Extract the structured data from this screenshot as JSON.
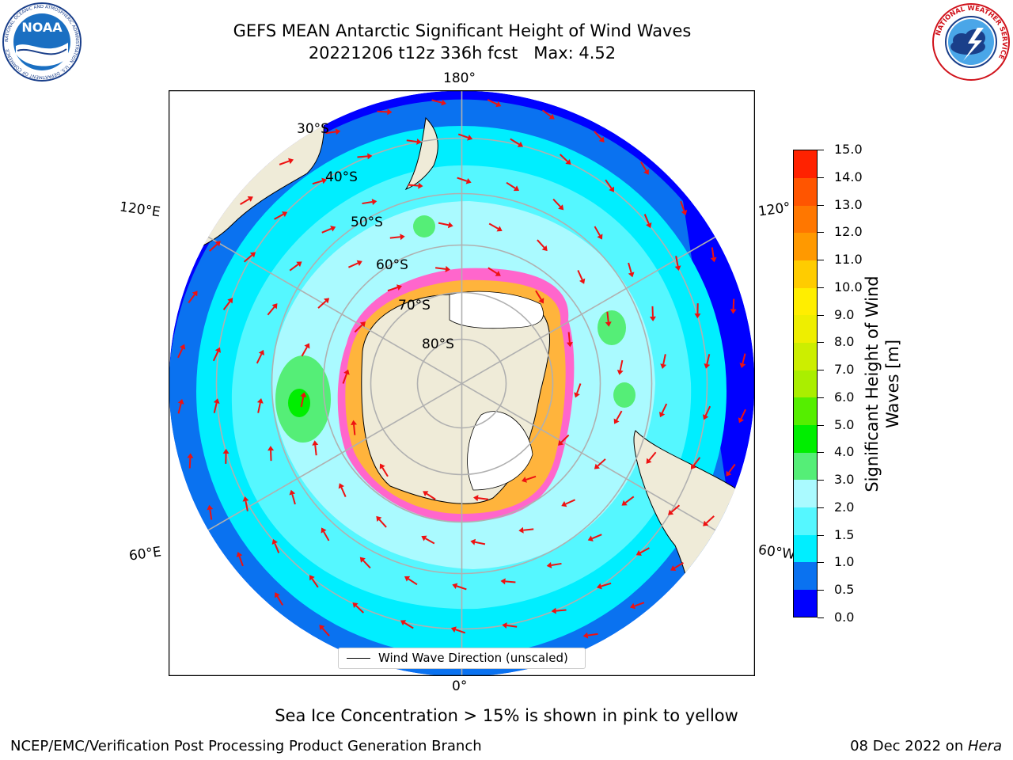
{
  "header": {
    "title_line1": "GEFS MEAN Antarctic Significant Height of Wind Waves",
    "title_line2": "20221206 t12z 336h fcst   Max: 4.52"
  },
  "logos": {
    "noaa_text": "NOAA",
    "noaa_ring_text": "NATIONAL OCEANIC AND ATMOSPHERIC ADMINISTRATION · U.S. DEPARTMENT OF COMMERCE",
    "nws_ring_text": "NATIONAL WEATHER SERVICE"
  },
  "map": {
    "projection": "south-polar-stereographic",
    "lon_labels": {
      "top": "180°",
      "bottom": "0°",
      "upper_left": "120°E",
      "upper_right": "120°",
      "lower_left": "60°E",
      "lower_right": "60°W"
    },
    "lat_labels": [
      "30°S",
      "40°S",
      "50°S",
      "60°S",
      "70°S",
      "80°S"
    ],
    "colors": {
      "land": "#efebd8",
      "ice_shelf": "#ffffff",
      "sea_ice": "#ff66cc",
      "grid": "#b0b0b0",
      "arrows": "#ee1111",
      "wave_0_0.5": "#0000ff",
      "wave_0.5_1": "#0a72f0",
      "wave_1_1.5": "#00eeff",
      "wave_1.5_2": "#55f7ff",
      "wave_2_3": "#aafaff",
      "wave_3_4": "#55ee77"
    },
    "legend_label": "Wind Wave Direction (unscaled)"
  },
  "colorbar": {
    "label": "Significant Height of Wind Waves [m]",
    "label_line1": "Significant Height of Wind",
    "label_line2": "Waves [m]",
    "ticks": [
      "0.0",
      "0.5",
      "1.0",
      "1.5",
      "2.0",
      "3.0",
      "4.0",
      "5.0",
      "6.0",
      "7.0",
      "8.0",
      "9.0",
      "10.0",
      "11.0",
      "12.0",
      "13.0",
      "14.0",
      "15.0"
    ],
    "colors": [
      "#0000ff",
      "#0a72f0",
      "#00eeff",
      "#55f7ff",
      "#aafaff",
      "#55ee77",
      "#00ee00",
      "#55ee00",
      "#aaee00",
      "#ccee00",
      "#eeee00",
      "#ffee00",
      "#ffcc00",
      "#ff9900",
      "#ff7700",
      "#ff5500",
      "#ff2200"
    ]
  },
  "footer": {
    "sea_ice_note": "Sea Ice Concentration > 15% is shown in pink to yellow",
    "credit_left": "NCEP/EMC/Verification Post Processing Product Generation Branch",
    "credit_date": "08 Dec 2022 on ",
    "credit_machine": "Hera"
  }
}
